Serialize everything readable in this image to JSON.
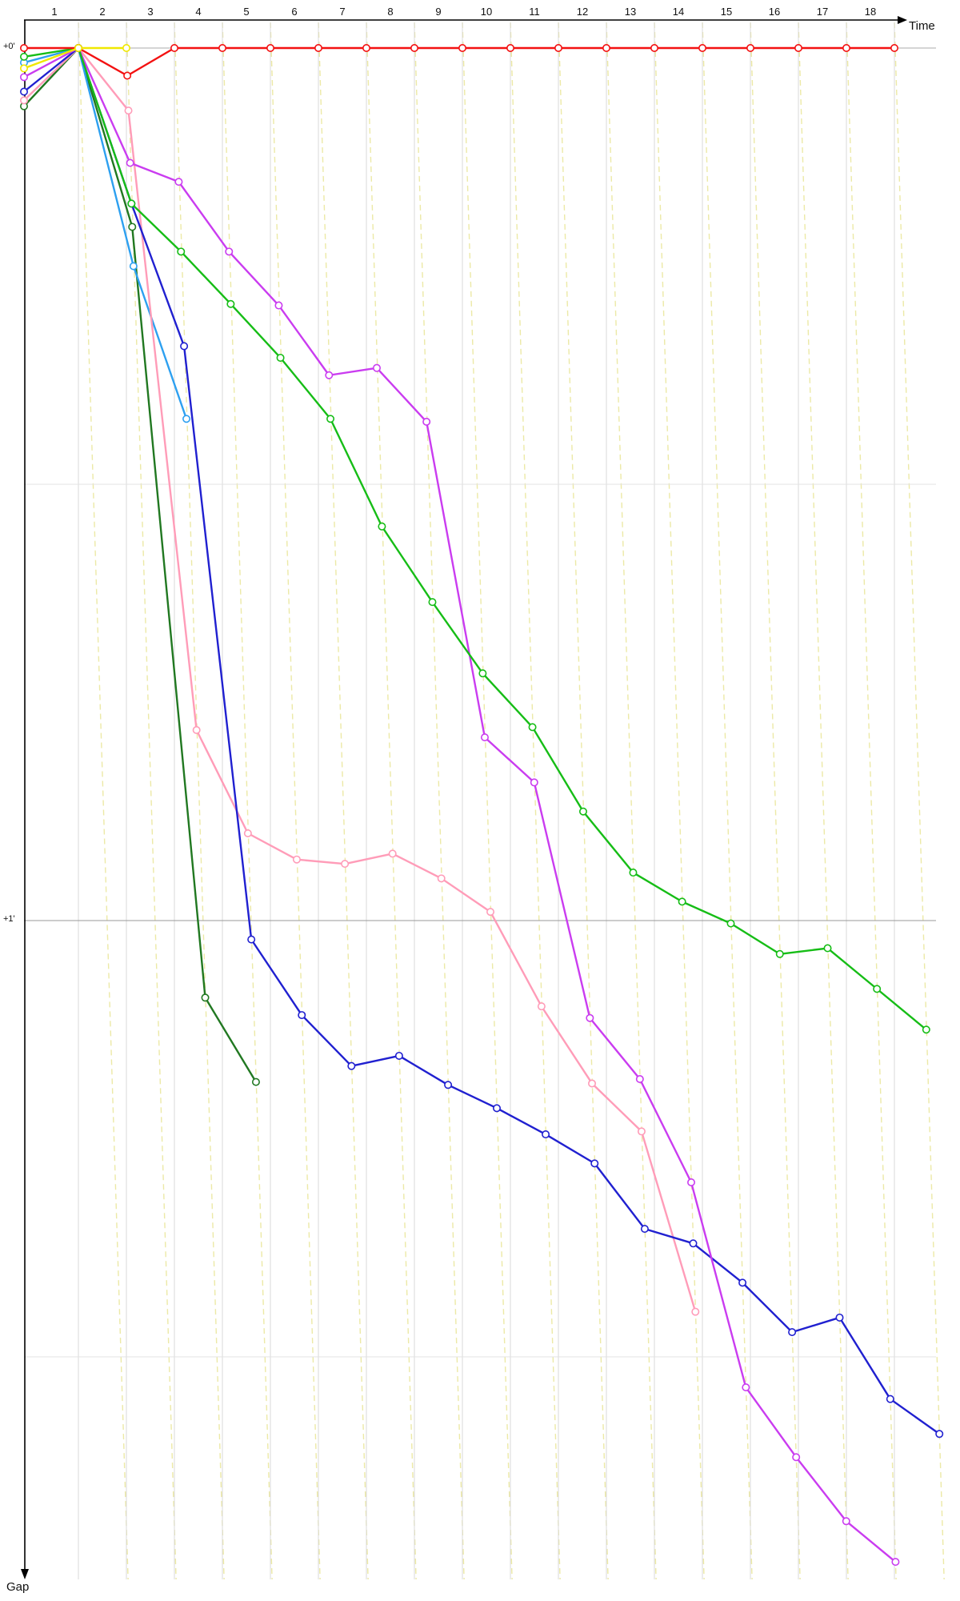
{
  "labels": {
    "x_axis_title": "Time",
    "y_axis_title": "Gap",
    "y_tick_zero": "+0'",
    "y_tick_one": "+1'"
  },
  "chart_data": {
    "type": "line",
    "title": "",
    "x_axis": {
      "label": "Time",
      "unit": "lap",
      "ticks": [
        1,
        2,
        3,
        4,
        5,
        6,
        7,
        8,
        9,
        10,
        11,
        12,
        13,
        14,
        15,
        16,
        17,
        18
      ]
    },
    "y_axis": {
      "label": "Gap",
      "unit": "minutes",
      "direction": "down",
      "tick_labels": [
        "+0'",
        "+1'"
      ],
      "gridlines_gap_min": [
        {
          "gap_min": 0.0,
          "color": "#ababab"
        },
        {
          "gap_min": 0.5,
          "color": "#e3e3e3"
        },
        {
          "gap_min": 1.0,
          "color": "#999999"
        },
        {
          "gap_min": 1.5,
          "color": "#e3e3e3"
        }
      ]
    },
    "legend": "none",
    "grid": {
      "lap_columns_color": "#d8d8d8",
      "lap_skew_color": "#ece9a6",
      "lap_skew_dashed": true
    },
    "series": [
      {
        "name": "dark-green",
        "color": "#217821",
        "start_gap_s": 4.0,
        "points": [
          {
            "lap": 1.5,
            "gap_s": 0
          },
          {
            "lap": 2.5,
            "gap_s": 12.3
          },
          {
            "lap": 3.5,
            "gap_s": 65.3
          },
          {
            "lap": 4.5,
            "gap_s": 71.1
          }
        ]
      },
      {
        "name": "cyan",
        "color": "#2da0f0",
        "start_gap_s": 1.0,
        "points": [
          {
            "lap": 1.5,
            "gap_s": 0
          },
          {
            "lap": 2.5,
            "gap_s": 15.0
          },
          {
            "lap": 3.5,
            "gap_s": 25.5
          }
        ]
      },
      {
        "name": "pink",
        "color": "#ff9cb8",
        "start_gap_s": 3.6,
        "points": [
          {
            "lap": 1.5,
            "gap_s": 0
          },
          {
            "lap": 2.5,
            "gap_s": 4.3
          },
          {
            "lap": 3.5,
            "gap_s": 46.9
          },
          {
            "lap": 4.5,
            "gap_s": 54.0
          },
          {
            "lap": 5.5,
            "gap_s": 55.8
          },
          {
            "lap": 6.5,
            "gap_s": 56.1
          },
          {
            "lap": 7.5,
            "gap_s": 55.4
          },
          {
            "lap": 8.5,
            "gap_s": 57.1
          },
          {
            "lap": 9.5,
            "gap_s": 59.4
          },
          {
            "lap": 10.5,
            "gap_s": 65.9
          },
          {
            "lap": 11.5,
            "gap_s": 71.2
          },
          {
            "lap": 12.5,
            "gap_s": 74.5
          },
          {
            "lap": 13.5,
            "gap_s": 86.9
          }
        ]
      },
      {
        "name": "blue",
        "color": "#2020d0",
        "start_gap_s": 3.0,
        "points": [
          {
            "lap": 1.5,
            "gap_s": 0
          },
          {
            "lap": 2.5,
            "gap_s": 10.7
          },
          {
            "lap": 3.5,
            "gap_s": 20.5
          },
          {
            "lap": 4.5,
            "gap_s": 61.3
          },
          {
            "lap": 5.5,
            "gap_s": 66.5
          },
          {
            "lap": 6.5,
            "gap_s": 70.0
          },
          {
            "lap": 7.5,
            "gap_s": 69.3
          },
          {
            "lap": 8.5,
            "gap_s": 71.3
          },
          {
            "lap": 9.5,
            "gap_s": 72.9
          },
          {
            "lap": 10.5,
            "gap_s": 74.7
          },
          {
            "lap": 11.5,
            "gap_s": 76.7
          },
          {
            "lap": 12.5,
            "gap_s": 81.2
          },
          {
            "lap": 13.5,
            "gap_s": 82.2
          },
          {
            "lap": 14.5,
            "gap_s": 84.9
          },
          {
            "lap": 15.5,
            "gap_s": 88.3
          },
          {
            "lap": 16.5,
            "gap_s": 87.3
          },
          {
            "lap": 17.5,
            "gap_s": 92.9
          },
          {
            "lap": 18.5,
            "gap_s": 95.3
          }
        ]
      },
      {
        "name": "violet",
        "color": "#ca3cf0",
        "start_gap_s": 2.0,
        "points": [
          {
            "lap": 1.5,
            "gap_s": 0
          },
          {
            "lap": 2.5,
            "gap_s": 7.9
          },
          {
            "lap": 3.5,
            "gap_s": 9.2
          },
          {
            "lap": 4.5,
            "gap_s": 14.0
          },
          {
            "lap": 5.5,
            "gap_s": 17.7
          },
          {
            "lap": 6.5,
            "gap_s": 22.5
          },
          {
            "lap": 7.5,
            "gap_s": 22.0
          },
          {
            "lap": 8.5,
            "gap_s": 25.7
          },
          {
            "lap": 9.5,
            "gap_s": 47.4
          },
          {
            "lap": 10.5,
            "gap_s": 50.5
          },
          {
            "lap": 11.5,
            "gap_s": 66.7
          },
          {
            "lap": 12.5,
            "gap_s": 70.9
          },
          {
            "lap": 13.5,
            "gap_s": 78.0
          },
          {
            "lap": 14.5,
            "gap_s": 92.1
          },
          {
            "lap": 15.5,
            "gap_s": 96.9
          },
          {
            "lap": 16.5,
            "gap_s": 101.3
          },
          {
            "lap": 17.5,
            "gap_s": 104.1
          }
        ]
      },
      {
        "name": "green",
        "color": "#16bd16",
        "start_gap_s": 0.6,
        "points": [
          {
            "lap": 1.5,
            "gap_s": 0
          },
          {
            "lap": 2.5,
            "gap_s": 10.7
          },
          {
            "lap": 3.5,
            "gap_s": 14.0
          },
          {
            "lap": 4.5,
            "gap_s": 17.6
          },
          {
            "lap": 5.5,
            "gap_s": 21.3
          },
          {
            "lap": 6.5,
            "gap_s": 25.5
          },
          {
            "lap": 7.5,
            "gap_s": 32.9
          },
          {
            "lap": 8.5,
            "gap_s": 38.1
          },
          {
            "lap": 9.5,
            "gap_s": 43.0
          },
          {
            "lap": 10.5,
            "gap_s": 46.7
          },
          {
            "lap": 11.5,
            "gap_s": 52.5
          },
          {
            "lap": 12.5,
            "gap_s": 56.7
          },
          {
            "lap": 13.5,
            "gap_s": 58.7
          },
          {
            "lap": 14.5,
            "gap_s": 60.2
          },
          {
            "lap": 15.5,
            "gap_s": 62.3
          },
          {
            "lap": 16.5,
            "gap_s": 61.9
          },
          {
            "lap": 17.5,
            "gap_s": 64.7
          },
          {
            "lap": 18.5,
            "gap_s": 67.5
          }
        ]
      },
      {
        "name": "red",
        "color": "#f31111",
        "start_gap_s": 0.0,
        "points": [
          {
            "lap": 1.5,
            "gap_s": 0
          },
          {
            "lap": 2.5,
            "gap_s": 1.9
          },
          {
            "lap": 3.5,
            "gap_s": 0
          },
          {
            "lap": 4.5,
            "gap_s": 0
          },
          {
            "lap": 5.5,
            "gap_s": 0
          },
          {
            "lap": 6.5,
            "gap_s": 0
          },
          {
            "lap": 7.5,
            "gap_s": 0
          },
          {
            "lap": 8.5,
            "gap_s": 0
          },
          {
            "lap": 9.5,
            "gap_s": 0
          },
          {
            "lap": 10.5,
            "gap_s": 0
          },
          {
            "lap": 11.5,
            "gap_s": 0
          },
          {
            "lap": 12.5,
            "gap_s": 0
          },
          {
            "lap": 13.5,
            "gap_s": 0
          },
          {
            "lap": 14.5,
            "gap_s": 0
          },
          {
            "lap": 15.5,
            "gap_s": 0
          },
          {
            "lap": 16.5,
            "gap_s": 0
          },
          {
            "lap": 17.5,
            "gap_s": 0
          },
          {
            "lap": 18.5,
            "gap_s": 0
          }
        ]
      },
      {
        "name": "yellow",
        "color": "#f0e800",
        "start_gap_s": 1.4,
        "points": [
          {
            "lap": 1.5,
            "gap_s": 0
          },
          {
            "lap": 2.5,
            "gap_s": 0
          }
        ]
      }
    ]
  }
}
